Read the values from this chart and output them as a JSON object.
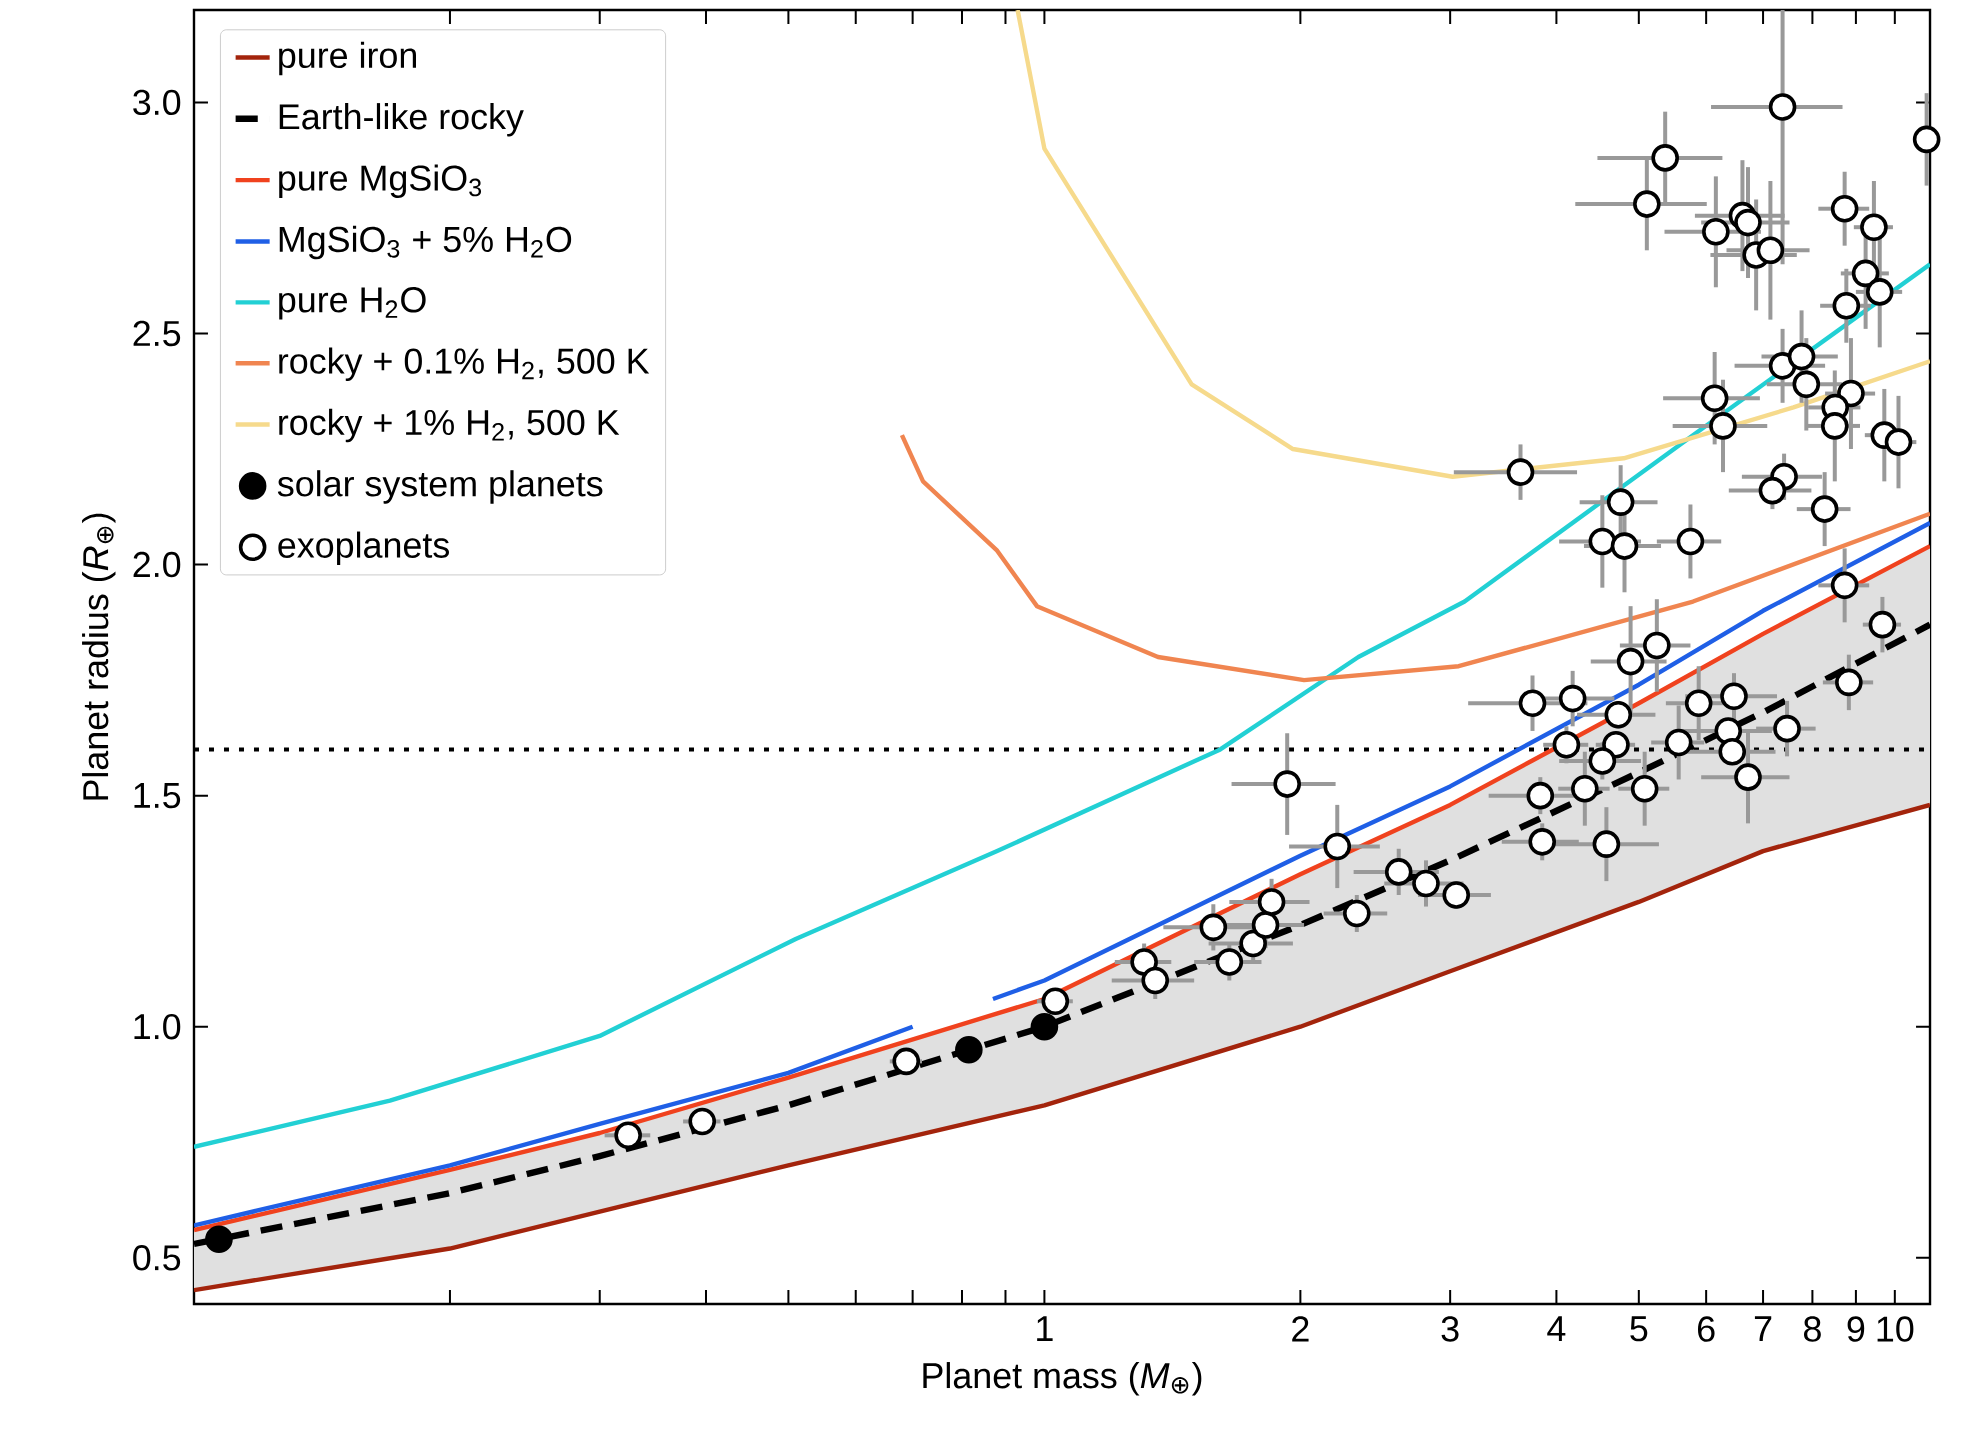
{
  "chart_data": {
    "type": "line",
    "xlabel": "Planet mass (*M*$_{⊕}$)",
    "ylabel": "Planet radius (*R*$_{⊕}$)",
    "log": "x",
    "xlim": [
      0.1,
      11
    ],
    "ylim": [
      0.4,
      3.2
    ],
    "xticks": [
      {
        "value": 0.2,
        "label": null
      },
      {
        "value": 0.3,
        "label": null
      },
      {
        "value": 0.4,
        "label": null
      },
      {
        "value": 0.5,
        "label": null
      },
      {
        "value": 0.6,
        "label": null
      },
      {
        "value": 0.7,
        "label": null
      },
      {
        "value": 0.8,
        "label": null
      },
      {
        "value": 0.9,
        "label": null
      },
      1,
      2,
      3,
      4,
      5,
      6,
      7,
      8,
      9,
      10
    ],
    "yticks": [
      {
        "value": 0.5,
        "label": "0.5"
      },
      {
        "value": 1.0,
        "label": "1.0"
      },
      {
        "value": 1.5,
        "label": "1.5"
      },
      {
        "value": 2.0,
        "label": "2.0"
      },
      {
        "value": 2.5,
        "label": "2.5"
      },
      {
        "value": 3.0,
        "label": "3.0"
      }
    ],
    "legend": "top left",
    "ref_lines": [
      {
        "axis": "y",
        "value": 1.6,
        "line_style": "dotted",
        "color": "#000000"
      }
    ],
    "series": [
      {
        "name": "pure iron",
        "color": "#a3240c",
        "x": [
          0.1,
          0.2,
          0.3,
          0.5,
          1,
          2,
          3,
          5,
          7,
          11
        ],
        "values": [
          0.43,
          0.52,
          0.6,
          0.7,
          0.83,
          1.0,
          1.12,
          1.27,
          1.38,
          1.48
        ]
      },
      {
        "name": "Earth-like rocky",
        "line_style": "dashed",
        "color": "#000000",
        "x": [
          0.1,
          0.2,
          0.3,
          0.5,
          1,
          2,
          3,
          5,
          7,
          11
        ],
        "values": [
          0.53,
          0.64,
          0.72,
          0.83,
          1.0,
          1.22,
          1.36,
          1.55,
          1.68,
          1.87
        ],
        "lower": [
          0.43,
          0.52,
          0.6,
          0.7,
          0.83,
          1.0,
          1.12,
          1.27,
          1.38,
          1.48
        ],
        "upper": [
          0.56,
          0.69,
          0.77,
          0.89,
          1.06,
          1.33,
          1.48,
          1.7,
          1.85,
          2.04
        ]
      },
      {
        "name": "pure MgSiO$_{3}$",
        "color": "#f0421e",
        "x": [
          0.1,
          0.2,
          0.3,
          0.5,
          1,
          2,
          3,
          5,
          7,
          11
        ],
        "values": [
          0.56,
          0.69,
          0.77,
          0.89,
          1.06,
          1.33,
          1.48,
          1.7,
          1.85,
          2.04
        ]
      },
      {
        "name": "MgSiO$_{3}$ + 5% H$_{2}$O",
        "color": "#1f5fe6",
        "x": [
          0.1,
          0.2,
          0.3,
          0.5,
          0.7,
          0.8,
          0.87,
          1,
          2,
          3,
          5,
          7,
          11
        ],
        "values": [
          0.57,
          0.7,
          0.79,
          0.9,
          1.0,
          null,
          1.06,
          1.1,
          1.37,
          1.52,
          1.74,
          1.9,
          2.09
        ]
      },
      {
        "name": "pure H$_{2}$O",
        "color": "#22d0d4",
        "x": [
          0.1,
          0.17,
          0.3,
          0.51,
          0.88,
          1.61,
          2.34,
          3.12,
          5.79,
          11
        ],
        "values": [
          0.74,
          0.84,
          0.98,
          1.19,
          1.38,
          1.6,
          1.8,
          1.92,
          2.28,
          2.65
        ]
      },
      {
        "name": "rocky + 0.1% H$_{2}$, 500 K",
        "color": "#f08550",
        "x": [
          0.68,
          0.72,
          0.88,
          0.98,
          1.36,
          2.02,
          3.07,
          5.79,
          11
        ],
        "values": [
          2.28,
          2.18,
          2.03,
          1.91,
          1.8,
          1.75,
          1.78,
          1.92,
          2.11
        ]
      },
      {
        "name": "rocky + 1% H$_{2}$, 500 K",
        "color": "#f6da8c",
        "x": [
          0.93,
          1.0,
          1.49,
          1.96,
          3.02,
          4.8,
          7.6,
          11
        ],
        "values": [
          3.2,
          2.9,
          2.39,
          2.25,
          2.19,
          2.23,
          2.34,
          2.44
        ]
      },
      {
        "name": "solar system planets",
        "type": "scatter",
        "marker": "circle",
        "color": "#000000",
        "x": [
          0.107,
          0.815,
          1.0
        ],
        "values": [
          0.54,
          0.95,
          1.0
        ]
      },
      {
        "name": "exoplanets",
        "type": "scatter",
        "marker": "circle",
        "color": "#ffffff",
        "x": [
          0.324,
          0.396,
          0.688,
          1.03,
          1.31,
          1.35,
          1.58,
          1.65,
          1.76,
          1.82,
          1.85,
          1.93,
          2.21,
          2.33,
          2.61,
          2.81,
          3.05,
          3.75,
          4.18,
          4.89,
          5.25,
          4.73,
          4.11,
          4.7,
          4.53,
          4.32,
          3.83,
          3.85,
          4.58,
          5.08,
          5.57,
          5.88,
          6.47,
          6.37,
          6.44,
          6.72,
          7.47,
          8.83,
          9.67,
          7.38,
          5.37,
          5.11,
          6.16,
          6.62,
          6.72,
          6.87,
          7.14,
          8.73,
          9.45,
          9.24,
          9.6,
          8.77,
          10.9,
          7.38,
          7.77,
          7.87,
          6.14,
          6.28,
          8.88,
          8.51,
          8.5,
          9.72,
          10.1,
          3.63,
          4.76,
          4.53,
          4.81,
          5.75,
          7.41,
          7.18,
          8.27,
          8.73
        ],
        "values": [
          0.765,
          0.795,
          0.925,
          1.055,
          1.14,
          1.1,
          1.215,
          1.14,
          1.18,
          1.22,
          1.27,
          1.525,
          1.39,
          1.245,
          1.335,
          1.31,
          1.285,
          1.7,
          1.71,
          1.79,
          1.825,
          1.675,
          1.61,
          1.61,
          1.575,
          1.515,
          1.5,
          1.4,
          1.395,
          1.515,
          1.615,
          1.7,
          1.715,
          1.64,
          1.595,
          1.54,
          1.645,
          1.745,
          1.87,
          2.99,
          2.88,
          2.78,
          2.72,
          2.755,
          2.74,
          2.67,
          2.68,
          2.77,
          2.73,
          2.63,
          2.59,
          2.56,
          2.92,
          2.43,
          2.45,
          2.39,
          2.36,
          2.3,
          2.37,
          2.34,
          2.3,
          2.28,
          2.265,
          2.2,
          2.135,
          2.05,
          2.04,
          2.05,
          2.19,
          2.16,
          2.12,
          1.955
        ],
        "errors": [
          0.02,
          0.02,
          0.02,
          0.02,
          0.04,
          0.04,
          0.05,
          0.04,
          0.04,
          0.05,
          0.05,
          0.11,
          0.09,
          0.04,
          0.05,
          0.05,
          0.03,
          0.06,
          0.06,
          0.12,
          0.1,
          0.03,
          0.04,
          0.02,
          0.04,
          0.08,
          0.04,
          0.04,
          0.08,
          0.08,
          0.08,
          0.08,
          0.05,
          0.015,
          0.025,
          0.1,
          0.06,
          0.06,
          0.06,
          0.34,
          0.1,
          0.1,
          0.12,
          0.12,
          0.12,
          0.12,
          0.15,
          0.08,
          0.1,
          0.12,
          0.12,
          0.08,
          0.1,
          0.08,
          0.1,
          0.1,
          0.1,
          0.1,
          0.12,
          null,
          0.12,
          0.1,
          0.1,
          0.06,
          0.08,
          0.1,
          0.1,
          0.08,
          0.05,
          0.04,
          0.08,
          0.08
        ],
        "xerrors": [
          0.02,
          0.02,
          0.03,
          0.05,
          0.1,
          0.15,
          0.2,
          0.15,
          0.2,
          0.2,
          0.2,
          0.27,
          0.27,
          0.2,
          0.3,
          0.3,
          0.3,
          0.6,
          0.5,
          0.5,
          0.5,
          0.5,
          0.25,
          0.25,
          0.5,
          0.3,
          0.5,
          0.4,
          0.7,
          0.35,
          0.4,
          0.5,
          0.8,
          0.8,
          0.8,
          0.8,
          0.6,
          0.6,
          0.5,
          1.3,
          0.9,
          0.9,
          0.8,
          0.8,
          0.8,
          0.8,
          0.8,
          0.6,
          0.5,
          0.6,
          0.6,
          0.6,
          0.3,
          0.9,
          0.8,
          0.8,
          0.8,
          0.8,
          0.6,
          0.6,
          0.6,
          0.5,
          0.5,
          0.6,
          0.5,
          0.5,
          0.5,
          0.5,
          0.8,
          0.8,
          0.6,
          0.6
        ]
      }
    ]
  }
}
